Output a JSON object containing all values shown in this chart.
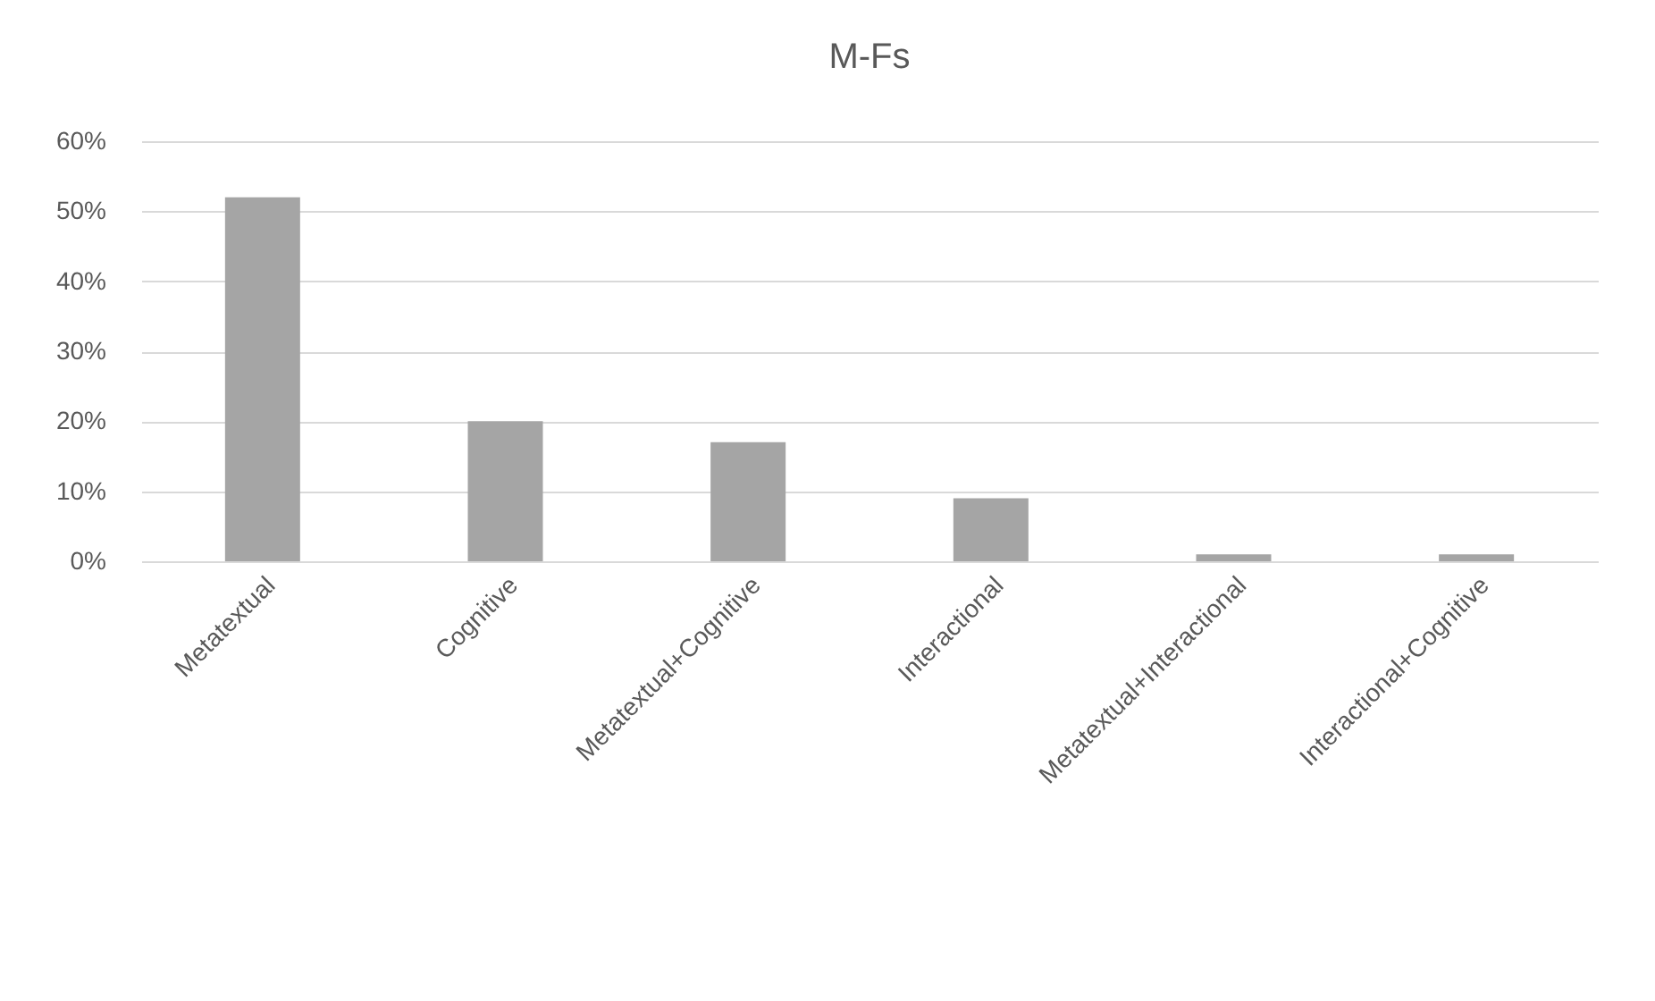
{
  "chart_data": {
    "type": "bar",
    "title": "M-Fs",
    "categories": [
      "Metatextual",
      "Cognitive",
      "Metatextual+Cognitive",
      "Interactional",
      "Metatextual+Interactional",
      "Interactional+Cognitive"
    ],
    "values": [
      52,
      20,
      17,
      9,
      1,
      1
    ],
    "color": "#a5a5a5",
    "ylim": [
      0,
      60
    ],
    "yticks": [
      {
        "value": 0,
        "label": "0%"
      },
      {
        "value": 10,
        "label": "10%"
      },
      {
        "value": 20,
        "label": "20%"
      },
      {
        "value": 30,
        "label": "30%"
      },
      {
        "value": 40,
        "label": "40%"
      },
      {
        "value": 50,
        "label": "50%"
      },
      {
        "value": 60,
        "label": "60%"
      }
    ],
    "grid": "y"
  }
}
